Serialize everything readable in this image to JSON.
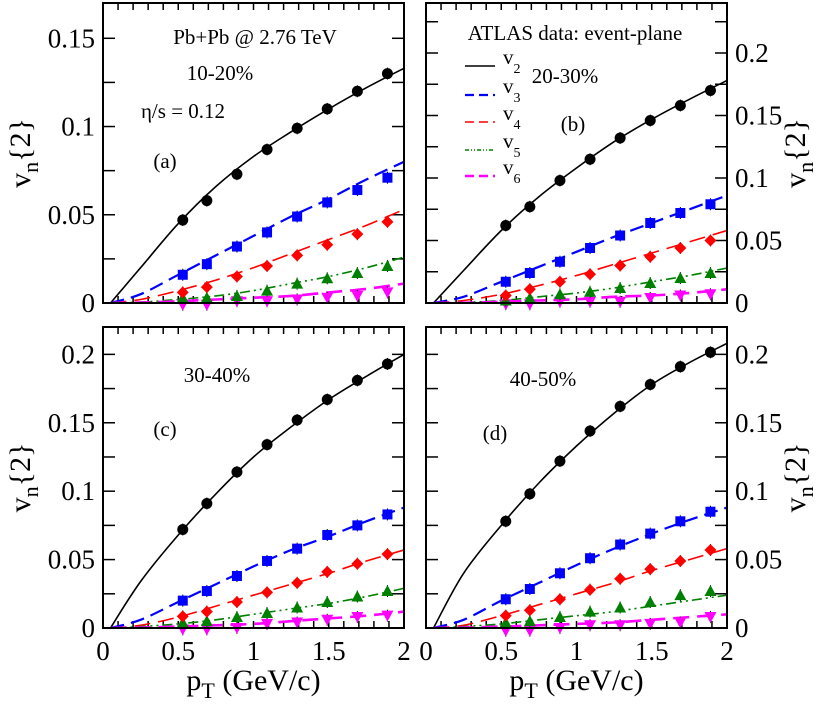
{
  "chart_data": {
    "type": "line",
    "shared": {
      "xlabel": "p_T (GeV/c)",
      "ylabel": "v_n{2}",
      "xlim": [
        0,
        2
      ],
      "xticks": [
        "0",
        "0.5",
        "1",
        "1.5",
        "2"
      ],
      "x_points": [
        0.53,
        0.69,
        0.89,
        1.09,
        1.29,
        1.49,
        1.69,
        1.89
      ],
      "grid": false
    },
    "legend": {
      "title": "ATLAS data: event-plane",
      "placement": "top-left of panel (b)",
      "entries": [
        {
          "key": "v2",
          "label": "v",
          "sub": "2",
          "color": "#000000"
        },
        {
          "key": "v3",
          "label": "v",
          "sub": "3",
          "color": "#0000ff"
        },
        {
          "key": "v4",
          "label": "v",
          "sub": "4",
          "color": "#ff0000"
        },
        {
          "key": "v5",
          "label": "v",
          "sub": "5",
          "color": "#008000"
        },
        {
          "key": "v6",
          "label": "v",
          "sub": "6",
          "color": "#ff00ff"
        }
      ]
    },
    "panels": [
      {
        "id": "a",
        "label": "(a)",
        "centrality": "10-20%",
        "extra_text": [
          "Pb+Pb @ 2.76 TeV",
          "η/s = 0.12"
        ],
        "ylim": [
          0,
          0.17
        ],
        "yticks": [
          "0",
          "0.05",
          "0.1",
          "0.15"
        ],
        "yaxis_side": "left",
        "data": {
          "v2": [
            0.047,
            0.058,
            0.073,
            0.087,
            0.099,
            0.11,
            0.12,
            0.13
          ],
          "v3": [
            0.016,
            0.022,
            0.032,
            0.04,
            0.049,
            0.057,
            0.064,
            0.071
          ],
          "v4": [
            0.006,
            0.009,
            0.015,
            0.021,
            0.027,
            0.033,
            0.039,
            0.046
          ],
          "v5": [
            0.003,
            0.003,
            0.004,
            0.007,
            0.011,
            0.014,
            0.017,
            0.021
          ],
          "v6": [
            -0.001,
            -0.001,
            0.001,
            0.001,
            0.002,
            0.003,
            0.004,
            0.006
          ]
        },
        "theory": {
          "x": [
            0.05,
            0.25,
            0.5,
            0.75,
            1.0,
            1.25,
            1.5,
            1.75,
            2.0
          ],
          "v2": [
            0,
            0.02,
            0.045,
            0.066,
            0.083,
            0.097,
            0.11,
            0.122,
            0.133
          ],
          "v3": [
            0,
            0.005,
            0.016,
            0.027,
            0.038,
            0.049,
            0.059,
            0.07,
            0.08
          ],
          "v4": [
            0,
            0.002,
            0.007,
            0.013,
            0.02,
            0.028,
            0.036,
            0.044,
            0.053
          ],
          "v5": [
            0,
            0.0005,
            0.002,
            0.004,
            0.007,
            0.011,
            0.015,
            0.02,
            0.026
          ],
          "v6": [
            0,
            0.0002,
            0.001,
            0.002,
            0.003,
            0.004,
            0.006,
            0.008,
            0.011
          ]
        }
      },
      {
        "id": "b",
        "label": "(b)",
        "centrality": "20-30%",
        "extra_text": [],
        "ylim": [
          0,
          0.24
        ],
        "yticks": [
          "0",
          "0.05",
          "0.1",
          "0.15",
          "0.2"
        ],
        "yaxis_side": "right",
        "data": {
          "v2": [
            0.062,
            0.077,
            0.098,
            0.115,
            0.132,
            0.146,
            0.158,
            0.17
          ],
          "v3": [
            0.017,
            0.024,
            0.033,
            0.044,
            0.054,
            0.064,
            0.072,
            0.079
          ],
          "v4": [
            0.006,
            0.011,
            0.017,
            0.023,
            0.03,
            0.037,
            0.044,
            0.05
          ],
          "v5": [
            0.002,
            0.004,
            0.007,
            0.009,
            0.012,
            0.016,
            0.02,
            0.024
          ],
          "v6": [
            -0.001,
            -0.001,
            0.001,
            0.001,
            0.001,
            0.004,
            0.006,
            0.007
          ]
        },
        "theory": {
          "x": [
            0.05,
            0.25,
            0.5,
            0.75,
            1.0,
            1.25,
            1.5,
            1.75,
            2.0
          ],
          "v2": [
            0,
            0.026,
            0.058,
            0.085,
            0.108,
            0.129,
            0.147,
            0.163,
            0.178
          ],
          "v3": [
            0,
            0.005,
            0.017,
            0.029,
            0.041,
            0.053,
            0.064,
            0.075,
            0.086
          ],
          "v4": [
            0,
            0.002,
            0.007,
            0.014,
            0.022,
            0.031,
            0.04,
            0.049,
            0.058
          ],
          "v5": [
            0,
            0.0005,
            0.002,
            0.005,
            0.008,
            0.012,
            0.017,
            0.022,
            0.028
          ],
          "v6": [
            0,
            0.0002,
            0.001,
            0.002,
            0.003,
            0.005,
            0.006,
            0.008,
            0.011
          ]
        }
      },
      {
        "id": "c",
        "label": "(c)",
        "centrality": "30-40%",
        "extra_text": [],
        "ylim": [
          0,
          0.22
        ],
        "yticks": [
          "0",
          "0.05",
          "0.1",
          "0.15",
          "0.2"
        ],
        "yaxis_side": "left",
        "data": {
          "v2": [
            0.072,
            0.091,
            0.114,
            0.134,
            0.152,
            0.167,
            0.181,
            0.193
          ],
          "v3": [
            0.02,
            0.027,
            0.038,
            0.049,
            0.058,
            0.068,
            0.075,
            0.083
          ],
          "v4": [
            0.0085,
            0.012,
            0.019,
            0.026,
            0.033,
            0.041,
            0.047,
            0.054
          ],
          "v5": [
            0.004,
            0.005,
            0.008,
            0.011,
            0.015,
            0.019,
            0.023,
            0.027
          ],
          "v6": [
            -0.001,
            -0.001,
            0.0,
            0.003,
            0.004,
            0.006,
            0.008,
            0.009
          ]
        },
        "theory": {
          "x": [
            0.05,
            0.25,
            0.5,
            0.75,
            1.0,
            1.25,
            1.5,
            1.75,
            2.0
          ],
          "v2": [
            0,
            0.034,
            0.068,
            0.098,
            0.125,
            0.147,
            0.167,
            0.184,
            0.2
          ],
          "v3": [
            0,
            0.006,
            0.019,
            0.032,
            0.045,
            0.057,
            0.067,
            0.078,
            0.088
          ],
          "v4": [
            0,
            0.002,
            0.008,
            0.016,
            0.024,
            0.032,
            0.04,
            0.049,
            0.057
          ],
          "v5": [
            0,
            0.001,
            0.003,
            0.006,
            0.01,
            0.014,
            0.018,
            0.023,
            0.029
          ],
          "v6": [
            0,
            0.0003,
            0.001,
            0.002,
            0.003,
            0.005,
            0.007,
            0.009,
            0.012
          ]
        }
      },
      {
        "id": "d",
        "label": "(d)",
        "centrality": "40-50%",
        "extra_text": [],
        "ylim": [
          0,
          0.22
        ],
        "yticks": [
          "0",
          "0.05",
          "0.1",
          "0.15",
          "0.2"
        ],
        "yaxis_side": "right",
        "data": {
          "v2": [
            0.078,
            0.098,
            0.122,
            0.144,
            0.162,
            0.178,
            0.191,
            0.2015
          ],
          "v3": [
            0.021,
            0.0285,
            0.04,
            0.051,
            0.061,
            0.069,
            0.078,
            0.085
          ],
          "v4": [
            0.009,
            0.013,
            0.021,
            0.028,
            0.036,
            0.043,
            0.049,
            0.057
          ],
          "v5": [
            0.004,
            0.005,
            0.008,
            0.012,
            0.015,
            0.019,
            0.024,
            0.027
          ],
          "v6": [
            -0.002,
            -0.002,
            0.0,
            0.002,
            0.002,
            0.003,
            0.004,
            0.008
          ]
        },
        "theory": {
          "x": [
            0.05,
            0.25,
            0.5,
            0.75,
            1.0,
            1.25,
            1.5,
            1.75,
            2.0
          ],
          "v2": [
            0,
            0.04,
            0.075,
            0.106,
            0.133,
            0.157,
            0.178,
            0.194,
            0.208
          ],
          "v3": [
            0,
            0.006,
            0.02,
            0.033,
            0.046,
            0.058,
            0.069,
            0.079,
            0.088
          ],
          "v4": [
            0,
            0.002,
            0.009,
            0.017,
            0.025,
            0.033,
            0.042,
            0.05,
            0.058
          ],
          "v5": [
            0,
            0.001,
            0.003,
            0.006,
            0.009,
            0.012,
            0.016,
            0.02,
            0.024
          ],
          "v6": [
            0,
            0.0003,
            0.001,
            0.002,
            0.003,
            0.004,
            0.006,
            0.008,
            0.01
          ]
        }
      }
    ]
  }
}
